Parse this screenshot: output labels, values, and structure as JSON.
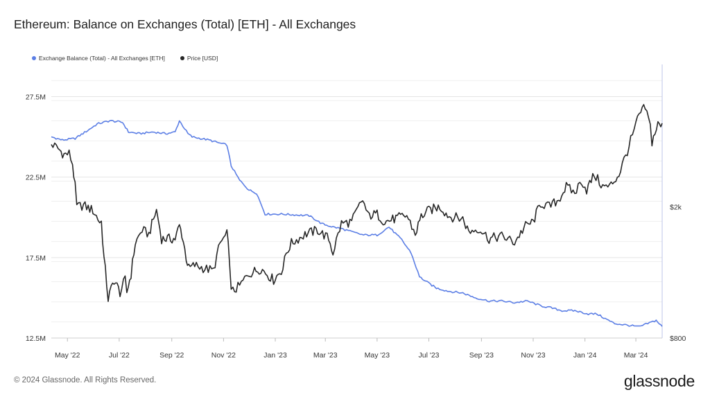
{
  "chart_data": {
    "type": "line",
    "title": "Ethereum: Balance on Exchanges (Total) [ETH] - All Exchanges",
    "x_ticks": [
      "May '22",
      "Jul '22",
      "Sep '22",
      "Nov '22",
      "Jan '23",
      "Mar '23",
      "May '23",
      "Jul '23",
      "Sep '23",
      "Nov '23",
      "Jan '24",
      "Mar '24"
    ],
    "x_range": [
      "2022-04-12",
      "2024-04-01"
    ],
    "y_left": {
      "ticks": [
        "12.5M",
        "17.5M",
        "22.5M",
        "27.5M"
      ],
      "range": [
        12.5,
        29.5
      ],
      "unit": "M ETH"
    },
    "y_right": {
      "ticks": [
        "$800",
        "$2k"
      ],
      "scale": "log",
      "range": [
        800,
        5400
      ]
    },
    "grid": true,
    "legend_position": "top-left",
    "series": [
      {
        "name": "Exchange Balance (Total) - All Exchanges [ETH]",
        "axis": "left",
        "color": "#5b7ee5",
        "points": [
          [
            "2022-04-12",
            25.0
          ],
          [
            "2022-04-25",
            24.8
          ],
          [
            "2022-05-10",
            24.9
          ],
          [
            "2022-05-25",
            25.4
          ],
          [
            "2022-06-05",
            25.8
          ],
          [
            "2022-06-20",
            26.0
          ],
          [
            "2022-07-05",
            25.9
          ],
          [
            "2022-07-12",
            25.3
          ],
          [
            "2022-07-25",
            25.2
          ],
          [
            "2022-08-10",
            25.3
          ],
          [
            "2022-08-25",
            25.2
          ],
          [
            "2022-09-05",
            25.3
          ],
          [
            "2022-09-10",
            26.0
          ],
          [
            "2022-09-20",
            25.2
          ],
          [
            "2022-09-25",
            25.0
          ],
          [
            "2022-10-15",
            24.8
          ],
          [
            "2022-10-28",
            24.6
          ],
          [
            "2022-11-05",
            24.5
          ],
          [
            "2022-11-10",
            23.2
          ],
          [
            "2022-11-20",
            22.3
          ],
          [
            "2022-12-01",
            21.7
          ],
          [
            "2022-12-10",
            21.5
          ],
          [
            "2022-12-20",
            20.2
          ],
          [
            "2023-01-10",
            20.2
          ],
          [
            "2023-02-10",
            20.1
          ],
          [
            "2023-02-25",
            19.6
          ],
          [
            "2023-03-10",
            19.4
          ],
          [
            "2023-03-20",
            19.3
          ],
          [
            "2023-04-01",
            19.1
          ],
          [
            "2023-04-15",
            18.9
          ],
          [
            "2023-05-01",
            18.9
          ],
          [
            "2023-05-15",
            19.4
          ],
          [
            "2023-05-30",
            18.6
          ],
          [
            "2023-06-10",
            17.8
          ],
          [
            "2023-06-20",
            16.3
          ],
          [
            "2023-07-01",
            15.9
          ],
          [
            "2023-07-10",
            15.6
          ],
          [
            "2023-07-25",
            15.4
          ],
          [
            "2023-08-10",
            15.3
          ],
          [
            "2023-08-25",
            15.0
          ],
          [
            "2023-09-10",
            14.8
          ],
          [
            "2023-09-25",
            14.8
          ],
          [
            "2023-10-10",
            14.7
          ],
          [
            "2023-10-25",
            14.8
          ],
          [
            "2023-11-10",
            14.5
          ],
          [
            "2023-11-20",
            14.4
          ],
          [
            "2023-12-05",
            14.2
          ],
          [
            "2023-12-20",
            14.2
          ],
          [
            "2024-01-05",
            14.0
          ],
          [
            "2024-01-15",
            14.0
          ],
          [
            "2024-01-25",
            13.7
          ],
          [
            "2024-02-05",
            13.4
          ],
          [
            "2024-02-20",
            13.3
          ],
          [
            "2024-03-05",
            13.2
          ],
          [
            "2024-03-15",
            13.4
          ],
          [
            "2024-03-25",
            13.6
          ],
          [
            "2024-04-01",
            13.2
          ]
        ]
      },
      {
        "name": "Price [USD]",
        "axis": "right",
        "color": "#262626",
        "points": [
          [
            "2022-04-12",
            3100
          ],
          [
            "2022-04-20",
            3000
          ],
          [
            "2022-04-27",
            2880
          ],
          [
            "2022-05-03",
            2900
          ],
          [
            "2022-05-07",
            2700
          ],
          [
            "2022-05-10",
            2300
          ],
          [
            "2022-05-12",
            2000
          ],
          [
            "2022-05-20",
            2020
          ],
          [
            "2022-05-31",
            1950
          ],
          [
            "2022-06-08",
            1800
          ],
          [
            "2022-06-10",
            1800
          ],
          [
            "2022-06-13",
            1400
          ],
          [
            "2022-06-18",
            1050
          ],
          [
            "2022-06-25",
            1200
          ],
          [
            "2022-07-02",
            1100
          ],
          [
            "2022-07-08",
            1200
          ],
          [
            "2022-07-10",
            1100
          ],
          [
            "2022-07-15",
            1250
          ],
          [
            "2022-07-20",
            1550
          ],
          [
            "2022-07-28",
            1700
          ],
          [
            "2022-08-05",
            1650
          ],
          [
            "2022-08-14",
            1950
          ],
          [
            "2022-08-20",
            1600
          ],
          [
            "2022-08-27",
            1600
          ],
          [
            "2022-09-05",
            1600
          ],
          [
            "2022-09-10",
            1750
          ],
          [
            "2022-09-13",
            1650
          ],
          [
            "2022-09-18",
            1400
          ],
          [
            "2022-09-21",
            1300
          ],
          [
            "2022-09-28",
            1330
          ],
          [
            "2022-10-10",
            1300
          ],
          [
            "2022-10-20",
            1280
          ],
          [
            "2022-10-28",
            1550
          ],
          [
            "2022-11-05",
            1650
          ],
          [
            "2022-11-08",
            1400
          ],
          [
            "2022-11-10",
            1100
          ],
          [
            "2022-11-20",
            1150
          ],
          [
            "2022-11-30",
            1250
          ],
          [
            "2022-12-15",
            1300
          ],
          [
            "2022-12-30",
            1200
          ],
          [
            "2023-01-10",
            1300
          ],
          [
            "2023-01-14",
            1450
          ],
          [
            "2023-01-20",
            1550
          ],
          [
            "2023-02-05",
            1650
          ],
          [
            "2023-02-20",
            1700
          ],
          [
            "2023-03-05",
            1600
          ],
          [
            "2023-03-10",
            1450
          ],
          [
            "2023-03-20",
            1780
          ],
          [
            "2023-04-01",
            1800
          ],
          [
            "2023-04-14",
            2100
          ],
          [
            "2023-04-20",
            1880
          ],
          [
            "2023-05-01",
            1900
          ],
          [
            "2023-05-10",
            1800
          ],
          [
            "2023-05-25",
            1850
          ],
          [
            "2023-06-05",
            1880
          ],
          [
            "2023-06-15",
            1650
          ],
          [
            "2023-06-22",
            1870
          ],
          [
            "2023-07-01",
            1950
          ],
          [
            "2023-07-14",
            2000
          ],
          [
            "2023-07-25",
            1870
          ],
          [
            "2023-08-10",
            1840
          ],
          [
            "2023-08-17",
            1680
          ],
          [
            "2023-08-29",
            1720
          ],
          [
            "2023-09-10",
            1600
          ],
          [
            "2023-09-25",
            1630
          ],
          [
            "2023-10-10",
            1560
          ],
          [
            "2023-10-23",
            1750
          ],
          [
            "2023-11-01",
            1800
          ],
          [
            "2023-11-10",
            2050
          ],
          [
            "2023-11-20",
            2000
          ],
          [
            "2023-12-01",
            2100
          ],
          [
            "2023-12-10",
            2300
          ],
          [
            "2023-12-20",
            2200
          ],
          [
            "2023-12-28",
            2400
          ],
          [
            "2024-01-03",
            2250
          ],
          [
            "2024-01-12",
            2500
          ],
          [
            "2024-01-22",
            2300
          ],
          [
            "2024-01-30",
            2300
          ],
          [
            "2024-02-10",
            2500
          ],
          [
            "2024-02-20",
            2950
          ],
          [
            "2024-02-28",
            3400
          ],
          [
            "2024-03-05",
            3800
          ],
          [
            "2024-03-12",
            4000
          ],
          [
            "2024-03-18",
            3500
          ],
          [
            "2024-03-20",
            3150
          ],
          [
            "2024-03-27",
            3550
          ],
          [
            "2024-04-01",
            3500
          ]
        ]
      }
    ]
  },
  "legend": {
    "balance_label": "Exchange Balance (Total) - All Exchanges [ETH]",
    "price_label": "Price [USD]"
  },
  "footer": {
    "copyright": "© 2024 Glassnode. All Rights Reserved.",
    "brand": "glassnode"
  }
}
